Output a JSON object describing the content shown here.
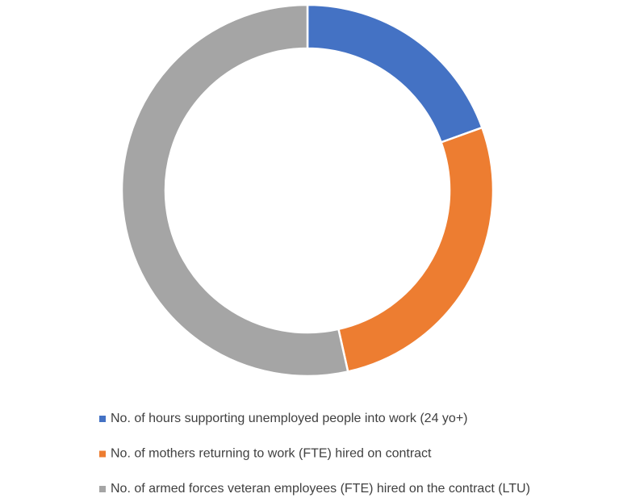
{
  "chart_data": {
    "type": "doughnut",
    "categories": [
      "No. of hours supporting unemployed people into work (24 yo+)",
      "No. of mothers returning to work (FTE) hired on contract",
      "No. of armed forces veteran employees (FTE) hired on the contract (LTU)"
    ],
    "values": [
      19.5,
      27,
      53.5
    ],
    "colors": [
      "#4472c4",
      "#ed7d31",
      "#a5a5a5"
    ],
    "legend": "bottom"
  }
}
